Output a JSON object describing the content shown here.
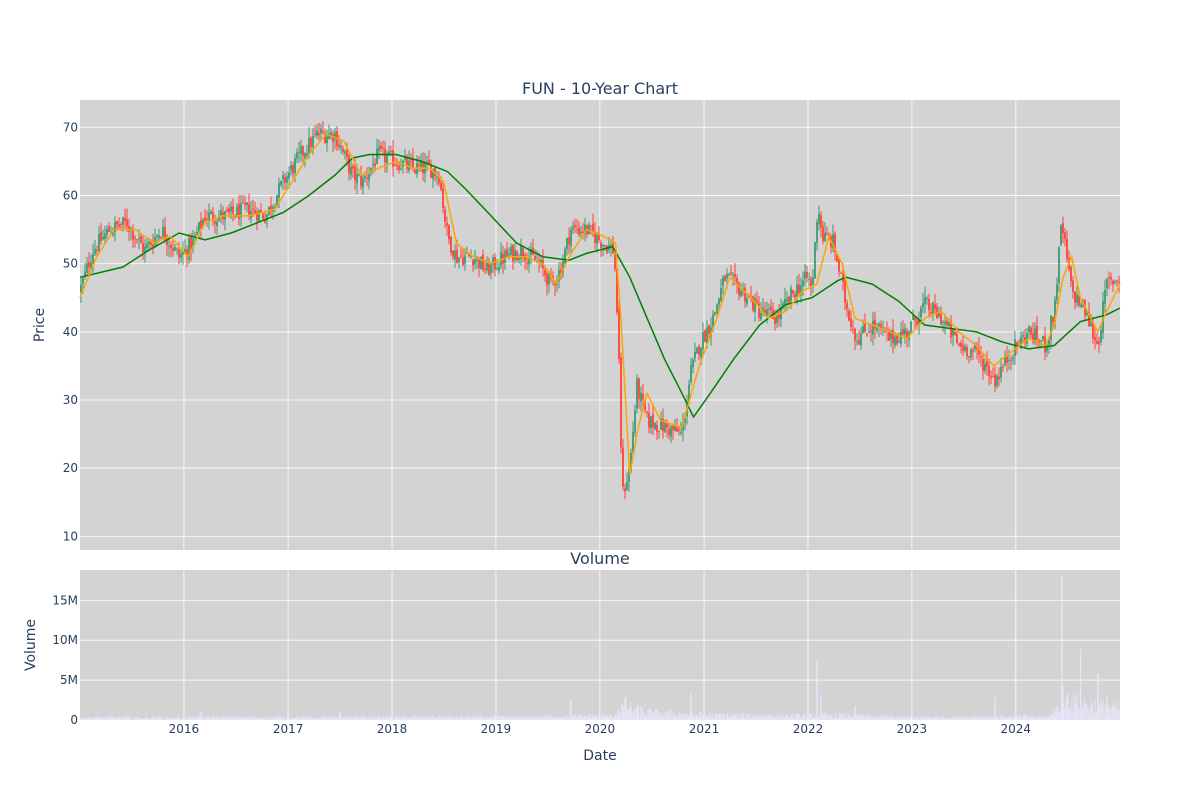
{
  "chart_data": [
    {
      "type": "candlestick",
      "title": "FUN - 10-Year Chart",
      "ylabel": "Price",
      "ylim": [
        8,
        74
      ],
      "yticks": [
        10,
        20,
        30,
        40,
        50,
        60,
        70
      ],
      "xlim": [
        "2015-01-01",
        "2025-01-01"
      ],
      "xticks": [
        "2016",
        "2017",
        "2018",
        "2019",
        "2020",
        "2021",
        "2022",
        "2023",
        "2024"
      ],
      "grid": true,
      "colors": {
        "up": "#3d9970",
        "down": "#ff4136",
        "ma_short": "#ffa500",
        "ma_long": "#008000",
        "background": "#d3d3d3"
      },
      "price_path": [
        [
          "2015-01-01",
          46
        ],
        [
          "2015-02-15",
          52
        ],
        [
          "2015-04-15",
          55
        ],
        [
          "2015-06-15",
          56
        ],
        [
          "2015-08-15",
          52
        ],
        [
          "2015-10-15",
          55
        ],
        [
          "2015-12-15",
          51
        ],
        [
          "2016-02-01",
          53
        ],
        [
          "2016-03-15",
          57
        ],
        [
          "2016-06-01",
          57
        ],
        [
          "2016-08-15",
          58
        ],
        [
          "2016-10-15",
          57
        ],
        [
          "2016-12-15",
          62
        ],
        [
          "2017-02-15",
          66
        ],
        [
          "2017-04-15",
          69
        ],
        [
          "2017-06-15",
          69
        ],
        [
          "2017-08-15",
          63
        ],
        [
          "2017-09-20",
          62
        ],
        [
          "2017-11-15",
          66
        ],
        [
          "2018-01-15",
          65
        ],
        [
          "2018-03-15",
          64
        ],
        [
          "2018-05-15",
          64
        ],
        [
          "2018-06-15",
          63
        ],
        [
          "2018-07-15",
          54
        ],
        [
          "2018-08-15",
          51
        ],
        [
          "2018-10-15",
          51
        ],
        [
          "2018-12-01",
          49
        ],
        [
          "2019-02-01",
          51
        ],
        [
          "2019-04-01",
          52
        ],
        [
          "2019-06-01",
          50
        ],
        [
          "2019-07-15",
          47
        ],
        [
          "2019-08-15",
          49
        ],
        [
          "2019-09-20",
          55
        ],
        [
          "2019-11-15",
          55
        ],
        [
          "2020-01-15",
          53
        ],
        [
          "2020-02-20",
          52
        ],
        [
          "2020-03-05",
          40
        ],
        [
          "2020-03-20",
          16
        ],
        [
          "2020-04-15",
          20
        ],
        [
          "2020-05-10",
          32
        ],
        [
          "2020-06-15",
          27
        ],
        [
          "2020-08-15",
          26
        ],
        [
          "2020-10-15",
          25
        ],
        [
          "2020-11-15",
          34
        ],
        [
          "2020-12-15",
          38
        ],
        [
          "2021-02-01",
          42
        ],
        [
          "2021-03-15",
          48
        ],
        [
          "2021-05-15",
          46
        ],
        [
          "2021-07-15",
          43
        ],
        [
          "2021-09-15",
          42
        ],
        [
          "2021-11-15",
          46
        ],
        [
          "2022-01-01",
          48
        ],
        [
          "2022-01-15",
          46
        ],
        [
          "2022-02-05",
          59
        ],
        [
          "2022-02-20",
          54
        ],
        [
          "2022-04-01",
          53
        ],
        [
          "2022-05-15",
          44
        ],
        [
          "2022-06-20",
          39
        ],
        [
          "2022-08-15",
          41
        ],
        [
          "2022-10-15",
          39
        ],
        [
          "2022-12-15",
          40
        ],
        [
          "2023-02-15",
          44
        ],
        [
          "2023-04-15",
          42
        ],
        [
          "2023-06-15",
          38
        ],
        [
          "2023-08-15",
          37
        ],
        [
          "2023-10-20",
          33
        ],
        [
          "2023-12-15",
          37
        ],
        [
          "2024-02-15",
          40
        ],
        [
          "2024-04-15",
          38
        ],
        [
          "2024-05-15",
          43
        ],
        [
          "2024-06-10",
          56
        ],
        [
          "2024-07-15",
          46
        ],
        [
          "2024-09-01",
          43
        ],
        [
          "2024-10-15",
          38
        ],
        [
          "2024-11-15",
          47
        ],
        [
          "2025-01-01",
          48
        ]
      ],
      "ma_short": [
        [
          "2015-01-01",
          45
        ],
        [
          "2015-03-01",
          51
        ],
        [
          "2015-05-01",
          55
        ],
        [
          "2015-07-15",
          55
        ],
        [
          "2015-09-15",
          53
        ],
        [
          "2015-11-15",
          54
        ],
        [
          "2016-01-15",
          51
        ],
        [
          "2016-03-15",
          56
        ],
        [
          "2016-05-15",
          57
        ],
        [
          "2016-08-15",
          57
        ],
        [
          "2016-11-15",
          58
        ],
        [
          "2017-01-15",
          62
        ],
        [
          "2017-03-15",
          66
        ],
        [
          "2017-05-15",
          69
        ],
        [
          "2017-07-15",
          68
        ],
        [
          "2017-09-15",
          63
        ],
        [
          "2017-11-15",
          64
        ],
        [
          "2018-01-15",
          65
        ],
        [
          "2018-03-15",
          64
        ],
        [
          "2018-05-15",
          64
        ],
        [
          "2018-07-01",
          62
        ],
        [
          "2018-08-15",
          53
        ],
        [
          "2018-10-15",
          51
        ],
        [
          "2018-12-15",
          50
        ],
        [
          "2019-02-15",
          51
        ],
        [
          "2019-04-15",
          51
        ],
        [
          "2019-06-15",
          50
        ],
        [
          "2019-08-01",
          47
        ],
        [
          "2019-09-15",
          51
        ],
        [
          "2019-11-15",
          55
        ],
        [
          "2020-01-15",
          54
        ],
        [
          "2020-02-25",
          53
        ],
        [
          "2020-03-15",
          42
        ],
        [
          "2020-04-15",
          19
        ],
        [
          "2020-05-15",
          26
        ],
        [
          "2020-06-15",
          31
        ],
        [
          "2020-08-01",
          27
        ],
        [
          "2020-10-15",
          26
        ],
        [
          "2020-12-15",
          35
        ],
        [
          "2021-02-15",
          42
        ],
        [
          "2021-04-01",
          48
        ],
        [
          "2021-06-15",
          45
        ],
        [
          "2021-08-15",
          42
        ],
        [
          "2021-10-15",
          43
        ],
        [
          "2021-12-15",
          46
        ],
        [
          "2022-02-01",
          47
        ],
        [
          "2022-03-15",
          54
        ],
        [
          "2022-05-01",
          50
        ],
        [
          "2022-06-15",
          42
        ],
        [
          "2022-08-15",
          41
        ],
        [
          "2022-10-15",
          40
        ],
        [
          "2022-12-15",
          39
        ],
        [
          "2023-02-15",
          42
        ],
        [
          "2023-04-15",
          43
        ],
        [
          "2023-06-15",
          40
        ],
        [
          "2023-08-15",
          38
        ],
        [
          "2023-10-15",
          35
        ],
        [
          "2023-12-15",
          37
        ],
        [
          "2024-02-15",
          39
        ],
        [
          "2024-04-15",
          38
        ],
        [
          "2024-05-15",
          41
        ],
        [
          "2024-06-15",
          48
        ],
        [
          "2024-07-15",
          51
        ],
        [
          "2024-08-15",
          45
        ],
        [
          "2024-10-15",
          40
        ],
        [
          "2024-11-15",
          43
        ],
        [
          "2025-01-01",
          47
        ]
      ],
      "ma_long": [
        [
          "2015-01-01",
          48
        ],
        [
          "2015-06-01",
          49.5
        ],
        [
          "2015-09-01",
          52
        ],
        [
          "2015-12-15",
          54.5
        ],
        [
          "2016-03-15",
          53.5
        ],
        [
          "2016-06-15",
          54.5
        ],
        [
          "2016-09-15",
          56
        ],
        [
          "2016-12-15",
          57.5
        ],
        [
          "2017-03-15",
          60
        ],
        [
          "2017-06-15",
          63
        ],
        [
          "2017-08-15",
          65.5
        ],
        [
          "2017-10-15",
          66
        ],
        [
          "2018-01-15",
          66
        ],
        [
          "2018-04-15",
          65
        ],
        [
          "2018-07-15",
          63.5
        ],
        [
          "2018-09-15",
          61
        ],
        [
          "2018-12-15",
          57
        ],
        [
          "2019-03-15",
          53
        ],
        [
          "2019-06-15",
          51
        ],
        [
          "2019-09-15",
          50.5
        ],
        [
          "2019-11-15",
          51.5
        ],
        [
          "2020-02-15",
          52.5
        ],
        [
          "2020-04-15",
          48
        ],
        [
          "2020-06-15",
          42
        ],
        [
          "2020-08-15",
          36
        ],
        [
          "2020-10-15",
          31
        ],
        [
          "2020-11-25",
          27.5
        ],
        [
          "2021-01-15",
          30.5
        ],
        [
          "2021-04-15",
          36
        ],
        [
          "2021-07-15",
          41
        ],
        [
          "2021-10-15",
          44
        ],
        [
          "2022-01-15",
          45
        ],
        [
          "2022-04-15",
          47.5
        ],
        [
          "2022-05-15",
          48
        ],
        [
          "2022-08-15",
          47
        ],
        [
          "2022-11-15",
          44.5
        ],
        [
          "2023-02-15",
          41
        ],
        [
          "2023-05-15",
          40.5
        ],
        [
          "2023-08-15",
          40
        ],
        [
          "2023-11-15",
          38.5
        ],
        [
          "2024-02-15",
          37.5
        ],
        [
          "2024-05-15",
          38
        ],
        [
          "2024-08-15",
          41.5
        ],
        [
          "2024-11-15",
          42.5
        ],
        [
          "2025-01-01",
          43.5
        ]
      ]
    },
    {
      "type": "bar",
      "title": "Volume",
      "ylabel": "Volume",
      "xlabel": "Date",
      "ylim": [
        0,
        18.8
      ],
      "yticks": [
        0,
        5,
        10,
        15
      ],
      "ytick_labels": [
        "0",
        "5M",
        "10M",
        "15M"
      ],
      "unit": "M",
      "color": "#e6e6fa",
      "base_level": [
        [
          "2015-01-01",
          0.35
        ],
        [
          "2019-06-01",
          0.45
        ],
        [
          "2020-02-15",
          0.6
        ],
        [
          "2020-03-20",
          2.0
        ],
        [
          "2020-06-15",
          1.1
        ],
        [
          "2021-01-01",
          0.7
        ],
        [
          "2021-12-15",
          0.6
        ],
        [
          "2022-03-01",
          0.7
        ],
        [
          "2023-01-01",
          0.4
        ],
        [
          "2024-05-01",
          0.5
        ],
        [
          "2024-06-15",
          2.6
        ],
        [
          "2025-01-01",
          1.6
        ]
      ],
      "spikes": [
        [
          "2016-03-01",
          1.0
        ],
        [
          "2017-07-01",
          1.1
        ],
        [
          "2019-09-20",
          2.5
        ],
        [
          "2020-04-01",
          3.1
        ],
        [
          "2020-11-15",
          3.3
        ],
        [
          "2022-02-01",
          7.4
        ],
        [
          "2022-02-15",
          3.1
        ],
        [
          "2022-06-15",
          1.8
        ],
        [
          "2023-10-20",
          2.9
        ],
        [
          "2024-05-15",
          1.4
        ],
        [
          "2024-06-10",
          18.0
        ],
        [
          "2024-06-14",
          4.3
        ],
        [
          "2024-07-01",
          3.2
        ],
        [
          "2024-08-01",
          3.0
        ],
        [
          "2024-08-15",
          8.9
        ],
        [
          "2024-10-15",
          5.8
        ],
        [
          "2024-11-15",
          2.9
        ]
      ]
    }
  ]
}
